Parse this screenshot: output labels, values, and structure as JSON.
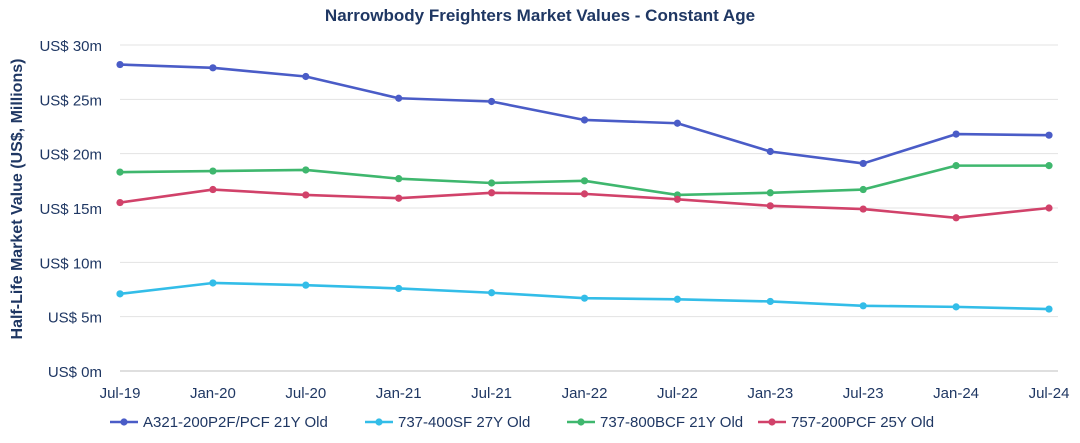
{
  "chart_data": {
    "type": "line",
    "title": "Narrowbody Freighters Market Values - Constant Age",
    "xlabel": "",
    "ylabel": "Half-Life Market Value (US$, Millions)",
    "categories": [
      "Jul-19",
      "Jan-20",
      "Jul-20",
      "Jan-21",
      "Jul-21",
      "Jan-22",
      "Jul-22",
      "Jan-23",
      "Jul-23",
      "Jan-24",
      "Jul-24"
    ],
    "y_ticks": [
      0,
      5,
      10,
      15,
      20,
      25,
      30
    ],
    "y_tick_labels": [
      "US$ 0m",
      "US$ 5m",
      "US$ 10m",
      "US$ 15m",
      "US$ 20m",
      "US$ 25m",
      "US$ 30m"
    ],
    "ylim": [
      0,
      30
    ],
    "grid": true,
    "legend_position": "bottom",
    "series": [
      {
        "name": "A321-200P2F/PCF 21Y Old",
        "color": "#4a5cc7",
        "values": [
          28.2,
          27.9,
          27.1,
          25.1,
          24.8,
          23.1,
          22.8,
          20.2,
          19.1,
          21.8,
          21.7
        ]
      },
      {
        "name": "737-400SF 27Y Old",
        "color": "#33bde8",
        "values": [
          7.1,
          8.1,
          7.9,
          7.6,
          7.2,
          6.7,
          6.6,
          6.4,
          6.0,
          5.9,
          5.7
        ]
      },
      {
        "name": "737-800BCF 21Y Old",
        "color": "#3fb76e",
        "values": [
          18.3,
          18.4,
          18.5,
          17.7,
          17.3,
          17.5,
          16.2,
          16.4,
          16.7,
          18.9,
          18.9
        ]
      },
      {
        "name": "757-200PCF 25Y Old",
        "color": "#d1426a",
        "values": [
          15.5,
          16.7,
          16.2,
          15.9,
          16.4,
          16.3,
          15.8,
          15.2,
          14.9,
          14.1,
          15.0
        ]
      }
    ]
  }
}
